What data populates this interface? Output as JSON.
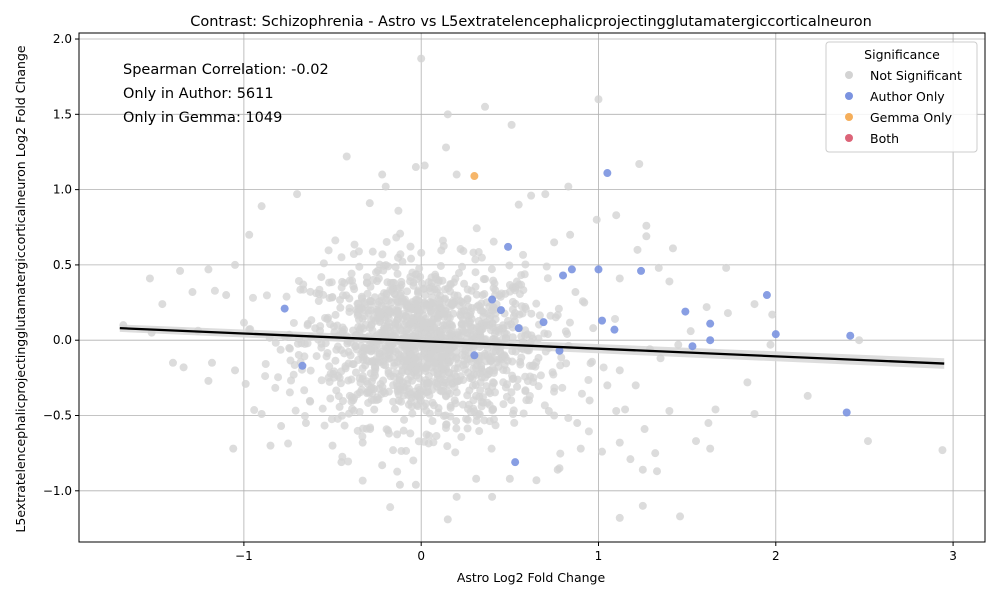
{
  "chart_data": {
    "type": "scatter",
    "title": "Contrast: Schizophrenia - Astro vs L5extratelencephalicprojectingglutamatergiccorticalneuron",
    "xlabel": "Astro Log2 Fold Change",
    "ylabel": "L5extratelencephalicprojectingglutamatergiccorticalneuron Log2 Fold Change",
    "xlim": [
      -1.93,
      3.18
    ],
    "ylim": [
      -1.34,
      2.04
    ],
    "x_ticks": [
      -1,
      0,
      1,
      2,
      3
    ],
    "x_tick_labels": [
      "−1",
      "0",
      "1",
      "2",
      "3"
    ],
    "y_ticks": [
      -1.0,
      -0.5,
      0.0,
      0.5,
      1.0,
      1.5,
      2.0
    ],
    "y_tick_labels": [
      "−1.0",
      "−0.5",
      "0.0",
      "0.5",
      "1.0",
      "1.5",
      "2.0"
    ],
    "grid": true,
    "annotations": [
      "Spearman Correlation: -0.02",
      "Only in Author: 5611",
      "Only in Gemma: 1049"
    ],
    "legend": {
      "title": "Significance",
      "placement": "top-right",
      "entries": [
        {
          "name": "Not Significant",
          "color": "#d3d3d3"
        },
        {
          "name": "Author Only",
          "color": "#7b93e0"
        },
        {
          "name": "Gemma Only",
          "color": "#f5ae5a"
        },
        {
          "name": "Both",
          "color": "#dc6478"
        }
      ]
    },
    "regression": {
      "x": [
        -1.7,
        2.95
      ],
      "y": [
        0.08,
        -0.155
      ],
      "band_halfwidth": [
        0.025,
        0.035
      ],
      "color": "#000000",
      "band_color": "#d9d9d9"
    },
    "series": [
      {
        "name": "Author Only",
        "color": "#7b93e0",
        "points": [
          [
            1.05,
            1.11
          ],
          [
            1.0,
            0.47
          ],
          [
            0.85,
            0.47
          ],
          [
            0.8,
            0.43
          ],
          [
            1.24,
            0.46
          ],
          [
            1.02,
            0.13
          ],
          [
            1.09,
            0.07
          ],
          [
            1.49,
            0.19
          ],
          [
            1.63,
            0.11
          ],
          [
            1.95,
            0.3
          ],
          [
            2.0,
            0.04
          ],
          [
            1.63,
            0.0
          ],
          [
            1.53,
            -0.04
          ],
          [
            2.42,
            0.03
          ],
          [
            2.4,
            -0.48
          ],
          [
            0.53,
            -0.81
          ],
          [
            0.49,
            0.62
          ],
          [
            -0.77,
            0.21
          ],
          [
            -0.67,
            -0.17
          ],
          [
            0.69,
            0.12
          ],
          [
            0.78,
            -0.07
          ],
          [
            0.45,
            0.2
          ],
          [
            0.55,
            0.08
          ],
          [
            0.4,
            0.27
          ],
          [
            0.3,
            -0.1
          ]
        ]
      },
      {
        "name": "Gemma Only",
        "color": "#f5ae5a",
        "points": [
          [
            0.3,
            1.09
          ]
        ]
      }
    ],
    "background_points": {
      "name": "Not Significant",
      "color": "#d3d3d3",
      "points": [
        [
          0.0,
          1.87
        ],
        [
          1.0,
          1.6
        ],
        [
          0.15,
          1.5
        ],
        [
          0.36,
          1.55
        ],
        [
          0.51,
          1.43
        ],
        [
          -0.42,
          1.22
        ],
        [
          0.14,
          1.28
        ],
        [
          1.23,
          1.17
        ],
        [
          -0.03,
          1.15
        ],
        [
          0.02,
          1.16
        ],
        [
          -0.22,
          1.1
        ],
        [
          0.2,
          1.1
        ],
        [
          -0.2,
          1.02
        ],
        [
          0.83,
          1.02
        ],
        [
          -0.9,
          0.89
        ],
        [
          -0.7,
          0.97
        ],
        [
          -0.29,
          0.91
        ],
        [
          1.1,
          0.83
        ],
        [
          1.27,
          0.76
        ],
        [
          1.27,
          0.69
        ],
        [
          1.22,
          0.6
        ],
        [
          1.42,
          0.61
        ],
        [
          1.72,
          0.48
        ],
        [
          1.34,
          0.48
        ],
        [
          1.4,
          0.39
        ],
        [
          1.12,
          0.41
        ],
        [
          0.99,
          0.8
        ],
        [
          0.62,
          0.96
        ],
        [
          0.7,
          0.97
        ],
        [
          0.55,
          0.9
        ],
        [
          -1.53,
          0.41
        ],
        [
          -1.36,
          0.46
        ],
        [
          -1.2,
          0.47
        ],
        [
          -1.05,
          0.5
        ],
        [
          -0.97,
          0.7
        ],
        [
          -1.46,
          0.24
        ],
        [
          -1.29,
          0.32
        ],
        [
          -1.1,
          0.3
        ],
        [
          -1.68,
          0.1
        ],
        [
          -1.52,
          0.05
        ],
        [
          -1.4,
          -0.15
        ],
        [
          -1.34,
          -0.18
        ],
        [
          -1.18,
          -0.15
        ],
        [
          -1.2,
          -0.27
        ],
        [
          -1.05,
          -0.2
        ],
        [
          -1.06,
          -0.72
        ],
        [
          -0.99,
          -0.29
        ],
        [
          -0.9,
          -0.49
        ],
        [
          -0.85,
          -0.7
        ],
        [
          -0.79,
          -0.57
        ],
        [
          -0.65,
          -0.55
        ],
        [
          -0.5,
          -0.7
        ],
        [
          -0.45,
          -0.81
        ],
        [
          -0.33,
          -0.68
        ],
        [
          -0.22,
          -0.83
        ],
        [
          -0.12,
          -0.96
        ],
        [
          -0.03,
          -0.96
        ],
        [
          0.15,
          -1.19
        ],
        [
          0.2,
          -1.04
        ],
        [
          0.4,
          -1.04
        ],
        [
          0.31,
          -0.92
        ],
        [
          0.5,
          -0.92
        ],
        [
          0.65,
          -0.93
        ],
        [
          0.77,
          -0.86
        ],
        [
          0.9,
          -0.72
        ],
        [
          1.02,
          -0.74
        ],
        [
          1.12,
          -0.68
        ],
        [
          1.18,
          -0.79
        ],
        [
          1.25,
          -0.86
        ],
        [
          1.25,
          -1.1
        ],
        [
          1.12,
          -1.18
        ],
        [
          1.46,
          -1.17
        ],
        [
          1.32,
          -0.75
        ],
        [
          1.33,
          -0.87
        ],
        [
          1.4,
          -0.47
        ],
        [
          1.55,
          -0.67
        ],
        [
          1.62,
          -0.55
        ],
        [
          1.63,
          -0.72
        ],
        [
          1.66,
          -0.46
        ],
        [
          1.84,
          -0.28
        ],
        [
          1.88,
          -0.49
        ],
        [
          2.18,
          -0.37
        ],
        [
          2.52,
          -0.67
        ],
        [
          2.94,
          -0.73
        ],
        [
          2.47,
          0.0
        ],
        [
          1.97,
          -0.03
        ],
        [
          1.98,
          0.17
        ],
        [
          1.88,
          0.24
        ],
        [
          1.73,
          0.18
        ],
        [
          1.61,
          0.22
        ],
        [
          1.52,
          0.06
        ],
        [
          1.45,
          -0.03
        ],
        [
          1.35,
          -0.12
        ],
        [
          1.29,
          -0.06
        ],
        [
          1.12,
          -0.2
        ],
        [
          1.05,
          -0.3
        ],
        [
          1.1,
          -0.47
        ],
        [
          1.15,
          -0.46
        ],
        [
          1.21,
          -0.3
        ],
        [
          1.26,
          -0.59
        ],
        [
          0.97,
          0.08
        ],
        [
          0.92,
          0.25
        ],
        [
          0.87,
          0.32
        ],
        [
          0.84,
          0.7
        ],
        [
          0.75,
          0.65
        ],
        [
          0.72,
          -0.47
        ],
        [
          0.75,
          -0.5
        ],
        [
          0.88,
          -0.55
        ],
        [
          0.95,
          -0.4
        ],
        [
          0.78,
          -0.85
        ]
      ]
    }
  }
}
